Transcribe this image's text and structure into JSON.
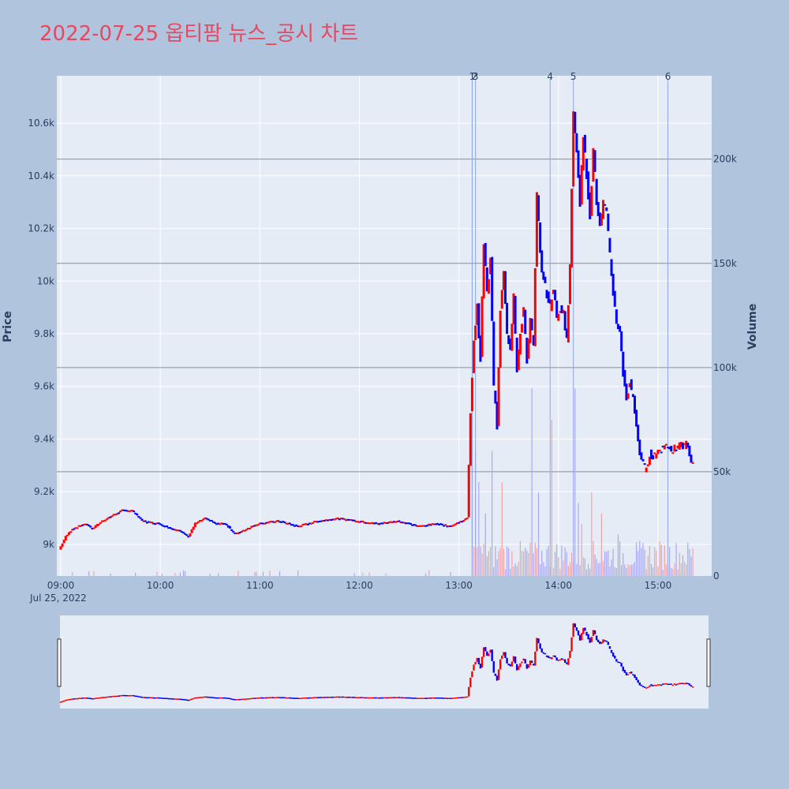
{
  "title": "2022-07-25 옵티팜 뉴스_공시 차트",
  "colors": {
    "background": "#b0c4de",
    "plot_bg": "#e5ecf6",
    "up": "#ff0000",
    "down": "#0000ff",
    "title": "#e8475f"
  },
  "chart_data": {
    "type": "candlestick",
    "x_date_label": "Jul 25, 2022",
    "price_axis": {
      "label": "Price",
      "range": [
        8880,
        10780
      ],
      "ticks": [
        9000,
        9200,
        9400,
        9600,
        9800,
        10000,
        10200,
        10400,
        10600
      ],
      "tick_labels": [
        "9k",
        "9.2k",
        "9.4k",
        "9.6k",
        "9.8k",
        "10k",
        "10.2k",
        "10.4k",
        "10.6k"
      ]
    },
    "volume_axis": {
      "label": "Volume",
      "range": [
        0,
        240000
      ],
      "ticks": [
        0,
        50000,
        100000,
        150000,
        200000
      ],
      "tick_labels": [
        "0",
        "50k",
        "100k",
        "150k",
        "200k"
      ]
    },
    "time_axis": {
      "range": [
        "09:00",
        "15:30"
      ],
      "ticks": [
        "09:00",
        "10:00",
        "11:00",
        "12:00",
        "13:00",
        "14:00",
        "15:00"
      ]
    },
    "news_markers": [
      {
        "label": "1",
        "time": "13:08"
      },
      {
        "label": "2",
        "time": "13:08"
      },
      {
        "label": "3",
        "time": "13:10"
      },
      {
        "label": "4",
        "time": "13:55"
      },
      {
        "label": "5",
        "time": "14:09"
      },
      {
        "label": "6",
        "time": "15:06"
      }
    ],
    "price_path": [
      [
        "09:00",
        8980
      ],
      [
        "09:04",
        9030
      ],
      [
        "09:08",
        9060
      ],
      [
        "09:12",
        9070
      ],
      [
        "09:16",
        9080
      ],
      [
        "09:20",
        9060
      ],
      [
        "09:26",
        9090
      ],
      [
        "09:32",
        9110
      ],
      [
        "09:38",
        9130
      ],
      [
        "09:44",
        9130
      ],
      [
        "09:50",
        9090
      ],
      [
        "10:00",
        9080
      ],
      [
        "10:08",
        9060
      ],
      [
        "10:14",
        9050
      ],
      [
        "10:18",
        9030
      ],
      [
        "10:22",
        9080
      ],
      [
        "10:28",
        9100
      ],
      [
        "10:34",
        9080
      ],
      [
        "10:40",
        9080
      ],
      [
        "10:46",
        9040
      ],
      [
        "11:00",
        9080
      ],
      [
        "11:12",
        9090
      ],
      [
        "11:24",
        9070
      ],
      [
        "11:36",
        9090
      ],
      [
        "11:48",
        9100
      ],
      [
        "12:00",
        9090
      ],
      [
        "12:12",
        9080
      ],
      [
        "12:24",
        9090
      ],
      [
        "12:36",
        9070
      ],
      [
        "12:48",
        9080
      ],
      [
        "12:56",
        9070
      ],
      [
        "13:06",
        9100
      ],
      [
        "13:08",
        9500
      ],
      [
        "13:10",
        9780
      ],
      [
        "13:12",
        9900
      ],
      [
        "13:14",
        9700
      ],
      [
        "13:16",
        10150
      ],
      [
        "13:18",
        9950
      ],
      [
        "13:20",
        10080
      ],
      [
        "13:22",
        9600
      ],
      [
        "13:24",
        9450
      ],
      [
        "13:26",
        9900
      ],
      [
        "13:28",
        10050
      ],
      [
        "13:30",
        9800
      ],
      [
        "13:32",
        9750
      ],
      [
        "13:34",
        9950
      ],
      [
        "13:36",
        9650
      ],
      [
        "13:38",
        9800
      ],
      [
        "13:40",
        9900
      ],
      [
        "13:42",
        9700
      ],
      [
        "13:44",
        9850
      ],
      [
        "13:46",
        9750
      ],
      [
        "13:48",
        10330
      ],
      [
        "13:50",
        10100
      ],
      [
        "13:52",
        10000
      ],
      [
        "13:54",
        9950
      ],
      [
        "13:56",
        9900
      ],
      [
        "13:58",
        9980
      ],
      [
        "14:00",
        9850
      ],
      [
        "14:02",
        9900
      ],
      [
        "14:04",
        9880
      ],
      [
        "14:06",
        9780
      ],
      [
        "14:08",
        10050
      ],
      [
        "14:10",
        10650
      ],
      [
        "14:12",
        10500
      ],
      [
        "14:14",
        10300
      ],
      [
        "14:16",
        10550
      ],
      [
        "14:18",
        10400
      ],
      [
        "14:20",
        10250
      ],
      [
        "14:22",
        10500
      ],
      [
        "14:24",
        10300
      ],
      [
        "14:26",
        10200
      ],
      [
        "14:28",
        10300
      ],
      [
        "14:30",
        10250
      ],
      [
        "14:32",
        10100
      ],
      [
        "14:34",
        9950
      ],
      [
        "14:36",
        9850
      ],
      [
        "14:38",
        9800
      ],
      [
        "14:40",
        9650
      ],
      [
        "14:42",
        9550
      ],
      [
        "14:44",
        9620
      ],
      [
        "14:46",
        9550
      ],
      [
        "14:48",
        9450
      ],
      [
        "14:50",
        9350
      ],
      [
        "14:52",
        9300
      ],
      [
        "14:54",
        9280
      ],
      [
        "14:56",
        9350
      ],
      [
        "14:58",
        9330
      ],
      [
        "15:00",
        9350
      ],
      [
        "15:02",
        9360
      ],
      [
        "15:06",
        9380
      ],
      [
        "15:10",
        9360
      ],
      [
        "15:14",
        9370
      ],
      [
        "15:18",
        9380
      ],
      [
        "15:22",
        9300
      ]
    ],
    "volume_spikes": [
      {
        "time": "13:08",
        "value": 90000
      },
      {
        "time": "13:10",
        "value": 60000
      },
      {
        "time": "13:12",
        "value": 45000
      },
      {
        "time": "13:16",
        "value": 30000
      },
      {
        "time": "13:20",
        "value": 60000
      },
      {
        "time": "13:26",
        "value": 45000
      },
      {
        "time": "13:44",
        "value": 90000
      },
      {
        "time": "13:48",
        "value": 40000
      },
      {
        "time": "13:56",
        "value": 75000
      },
      {
        "time": "14:10",
        "value": 90000
      },
      {
        "time": "14:12",
        "value": 35000
      },
      {
        "time": "14:14",
        "value": 25000
      },
      {
        "time": "14:20",
        "value": 40000
      },
      {
        "time": "14:26",
        "value": 30000
      },
      {
        "time": "14:36",
        "value": 20000
      },
      {
        "time": "14:48",
        "value": 12000
      },
      {
        "time": "15:14",
        "value": 6000
      },
      {
        "time": "15:30",
        "value": 20000
      }
    ]
  }
}
